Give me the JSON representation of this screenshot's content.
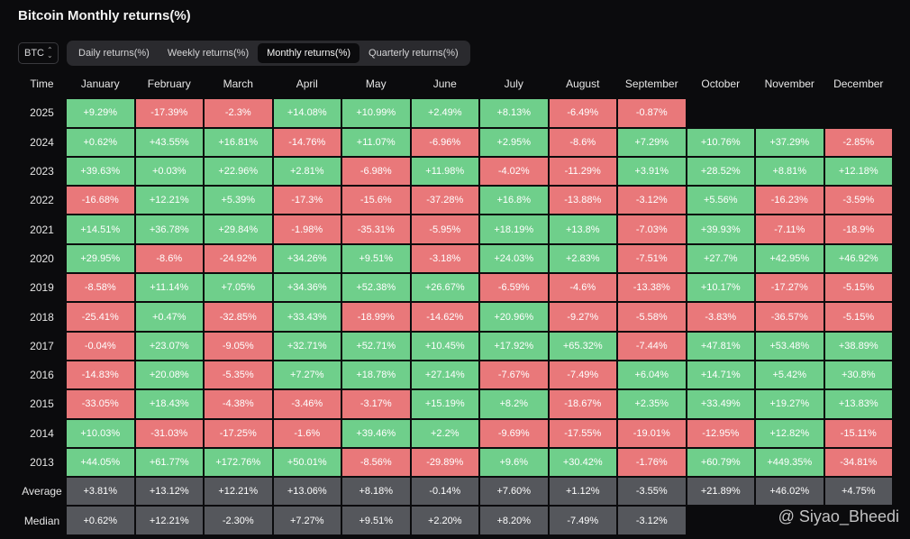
{
  "title": "Bitcoin Monthly returns(%)",
  "asset_selector": {
    "value": "BTC"
  },
  "tabs": [
    {
      "label": "Daily returns(%)",
      "active": false
    },
    {
      "label": "Weekly returns(%)",
      "active": false
    },
    {
      "label": "Monthly returns(%)",
      "active": true
    },
    {
      "label": "Quarterly returns(%)",
      "active": false
    }
  ],
  "colors": {
    "positive": "#6fcf8b",
    "negative": "#e9787a",
    "summary": "#55575c",
    "background": "#0b0b0d"
  },
  "table": {
    "headers": [
      "Time",
      "January",
      "February",
      "March",
      "April",
      "May",
      "June",
      "July",
      "August",
      "September",
      "October",
      "November",
      "December"
    ],
    "rows": [
      {
        "label": "2025",
        "values": [
          "+9.29%",
          "-17.39%",
          "-2.3%",
          "+14.08%",
          "+10.99%",
          "+2.49%",
          "+8.13%",
          "-6.49%",
          "-0.87%",
          "",
          "",
          ""
        ]
      },
      {
        "label": "2024",
        "values": [
          "+0.62%",
          "+43.55%",
          "+16.81%",
          "-14.76%",
          "+11.07%",
          "-6.96%",
          "+2.95%",
          "-8.6%",
          "+7.29%",
          "+10.76%",
          "+37.29%",
          "-2.85%"
        ]
      },
      {
        "label": "2023",
        "values": [
          "+39.63%",
          "+0.03%",
          "+22.96%",
          "+2.81%",
          "-6.98%",
          "+11.98%",
          "-4.02%",
          "-11.29%",
          "+3.91%",
          "+28.52%",
          "+8.81%",
          "+12.18%"
        ]
      },
      {
        "label": "2022",
        "values": [
          "-16.68%",
          "+12.21%",
          "+5.39%",
          "-17.3%",
          "-15.6%",
          "-37.28%",
          "+16.8%",
          "-13.88%",
          "-3.12%",
          "+5.56%",
          "-16.23%",
          "-3.59%"
        ]
      },
      {
        "label": "2021",
        "values": [
          "+14.51%",
          "+36.78%",
          "+29.84%",
          "-1.98%",
          "-35.31%",
          "-5.95%",
          "+18.19%",
          "+13.8%",
          "-7.03%",
          "+39.93%",
          "-7.11%",
          "-18.9%"
        ]
      },
      {
        "label": "2020",
        "values": [
          "+29.95%",
          "-8.6%",
          "-24.92%",
          "+34.26%",
          "+9.51%",
          "-3.18%",
          "+24.03%",
          "+2.83%",
          "-7.51%",
          "+27.7%",
          "+42.95%",
          "+46.92%"
        ]
      },
      {
        "label": "2019",
        "values": [
          "-8.58%",
          "+11.14%",
          "+7.05%",
          "+34.36%",
          "+52.38%",
          "+26.67%",
          "-6.59%",
          "-4.6%",
          "-13.38%",
          "+10.17%",
          "-17.27%",
          "-5.15%"
        ]
      },
      {
        "label": "2018",
        "values": [
          "-25.41%",
          "+0.47%",
          "-32.85%",
          "+33.43%",
          "-18.99%",
          "-14.62%",
          "+20.96%",
          "-9.27%",
          "-5.58%",
          "-3.83%",
          "-36.57%",
          "-5.15%"
        ]
      },
      {
        "label": "2017",
        "values": [
          "-0.04%",
          "+23.07%",
          "-9.05%",
          "+32.71%",
          "+52.71%",
          "+10.45%",
          "+17.92%",
          "+65.32%",
          "-7.44%",
          "+47.81%",
          "+53.48%",
          "+38.89%"
        ]
      },
      {
        "label": "2016",
        "values": [
          "-14.83%",
          "+20.08%",
          "-5.35%",
          "+7.27%",
          "+18.78%",
          "+27.14%",
          "-7.67%",
          "-7.49%",
          "+6.04%",
          "+14.71%",
          "+5.42%",
          "+30.8%"
        ]
      },
      {
        "label": "2015",
        "values": [
          "-33.05%",
          "+18.43%",
          "-4.38%",
          "-3.46%",
          "-3.17%",
          "+15.19%",
          "+8.2%",
          "-18.67%",
          "+2.35%",
          "+33.49%",
          "+19.27%",
          "+13.83%"
        ]
      },
      {
        "label": "2014",
        "values": [
          "+10.03%",
          "-31.03%",
          "-17.25%",
          "-1.6%",
          "+39.46%",
          "+2.2%",
          "-9.69%",
          "-17.55%",
          "-19.01%",
          "-12.95%",
          "+12.82%",
          "-15.11%"
        ]
      },
      {
        "label": "2013",
        "values": [
          "+44.05%",
          "+61.77%",
          "+172.76%",
          "+50.01%",
          "-8.56%",
          "-29.89%",
          "+9.6%",
          "+30.42%",
          "-1.76%",
          "+60.79%",
          "+449.35%",
          "-34.81%"
        ]
      },
      {
        "label": "Average",
        "summary": true,
        "values": [
          "+3.81%",
          "+13.12%",
          "+12.21%",
          "+13.06%",
          "+8.18%",
          "-0.14%",
          "+7.60%",
          "+1.12%",
          "-3.55%",
          "+21.89%",
          "+46.02%",
          "+4.75%"
        ]
      },
      {
        "label": "Median",
        "summary": true,
        "values": [
          "+0.62%",
          "+12.21%",
          "-2.30%",
          "+7.27%",
          "+9.51%",
          "+2.20%",
          "+8.20%",
          "-7.49%",
          "-3.12%",
          "",
          "",
          ""
        ]
      }
    ]
  },
  "watermark": "@ Siyao_Bheedi"
}
